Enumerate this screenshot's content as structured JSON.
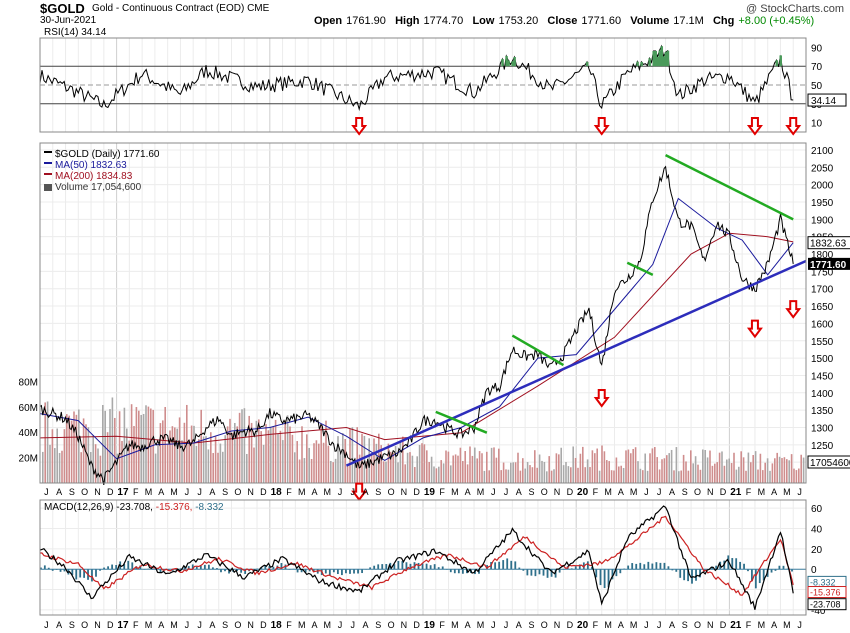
{
  "header": {
    "symbol": "$GOLD",
    "name": "Gold - Continuous Contract (EOD)",
    "exchange": "CME",
    "date": "30-Jun-2021",
    "copyright": "@ StockCharts.com",
    "open_label": "Open",
    "open": "1761.90",
    "high_label": "High",
    "high": "1774.70",
    "low_label": "Low",
    "low": "1753.20",
    "close_label": "Close",
    "close": "1771.60",
    "volume_label": "Volume",
    "volume": "17.1M",
    "chg_label": "Chg",
    "chg": "+8.00 (+0.45%)",
    "chg_color": "#008a00"
  },
  "chart_data": [
    {
      "type": "line",
      "panel": "rsi",
      "title": "RSI(14) 34.14",
      "y_ticks": [
        90,
        70,
        50,
        30,
        10
      ],
      "ylim": [
        0,
        100
      ],
      "reference_lines": [
        70,
        50,
        30
      ],
      "last_value_label": "34.14",
      "series": [
        {
          "name": "RSI(14)",
          "x": [
            "2016-07",
            "2016-10",
            "2016-12",
            "2017-03",
            "2017-06",
            "2017-08",
            "2017-12",
            "2018-04",
            "2018-08",
            "2018-10",
            "2019-02",
            "2019-05",
            "2019-08",
            "2019-11",
            "2020-02",
            "2020-03",
            "2020-05",
            "2020-08",
            "2020-09",
            "2020-11",
            "2021-01",
            "2021-03",
            "2021-05",
            "2021-06"
          ],
          "values": [
            60,
            42,
            28,
            62,
            40,
            66,
            48,
            55,
            27,
            58,
            64,
            42,
            80,
            45,
            68,
            28,
            62,
            88,
            38,
            55,
            60,
            30,
            78,
            34
          ]
        }
      ],
      "markers": [
        {
          "label": "arrow",
          "x": "2018-08"
        },
        {
          "label": "arrow",
          "x": "2020-03"
        },
        {
          "label": "arrow",
          "x": "2021-03"
        },
        {
          "label": "arrow",
          "x": "2021-06"
        }
      ]
    },
    {
      "type": "line",
      "panel": "price",
      "legend": [
        "$GOLD (Daily) 1771.60",
        "MA(50) 1832.63",
        "MA(200) 1834.83",
        "Volume 17,054,600"
      ],
      "legend_placement": "top-left",
      "y_ticks": [
        1200,
        1250,
        1300,
        1350,
        1400,
        1450,
        1500,
        1550,
        1600,
        1650,
        1700,
        1750,
        1800,
        1850,
        1900,
        1950,
        2000,
        2050,
        2100
      ],
      "ylim": [
        1140,
        2120
      ],
      "right_labels": [
        "1832.63",
        "1771.60"
      ],
      "volume_ticks": [
        "80M",
        "60M",
        "40M",
        "20M"
      ],
      "volume_last_label": "17054600",
      "x_month_labels": [
        "J",
        "A",
        "S",
        "O",
        "N",
        "D",
        "17",
        "F",
        "M",
        "A",
        "M",
        "J",
        "J",
        "A",
        "S",
        "O",
        "N",
        "D",
        "18",
        "F",
        "M",
        "A",
        "M",
        "J",
        "J",
        "A",
        "S",
        "O",
        "N",
        "D",
        "19",
        "F",
        "M",
        "A",
        "M",
        "J",
        "J",
        "A",
        "S",
        "O",
        "N",
        "D",
        "20",
        "F",
        "M",
        "A",
        "M",
        "J",
        "J",
        "A",
        "S",
        "O",
        "N",
        "D",
        "21",
        "F",
        "M",
        "A",
        "M",
        "J"
      ],
      "series": [
        {
          "name": "$GOLD (Daily)",
          "color": "#000000",
          "x": [
            "2016-07",
            "2016-08",
            "2016-09",
            "2016-10",
            "2016-11",
            "2016-12",
            "2017-01",
            "2017-02",
            "2017-03",
            "2017-04",
            "2017-05",
            "2017-06",
            "2017-07",
            "2017-08",
            "2017-09",
            "2017-10",
            "2017-11",
            "2017-12",
            "2018-01",
            "2018-02",
            "2018-03",
            "2018-04",
            "2018-05",
            "2018-06",
            "2018-07",
            "2018-08",
            "2018-09",
            "2018-10",
            "2018-11",
            "2018-12",
            "2019-01",
            "2019-02",
            "2019-03",
            "2019-04",
            "2019-05",
            "2019-06",
            "2019-07",
            "2019-08",
            "2019-09",
            "2019-10",
            "2019-11",
            "2019-12",
            "2020-01",
            "2020-02",
            "2020-03",
            "2020-04",
            "2020-05",
            "2020-06",
            "2020-07",
            "2020-08",
            "2020-09",
            "2020-10",
            "2020-11",
            "2020-12",
            "2021-01",
            "2021-02",
            "2021-03",
            "2021-04",
            "2021-05",
            "2021-06"
          ],
          "values": [
            1355,
            1340,
            1325,
            1275,
            1190,
            1150,
            1200,
            1250,
            1245,
            1265,
            1265,
            1245,
            1255,
            1300,
            1325,
            1275,
            1290,
            1290,
            1340,
            1320,
            1325,
            1335,
            1300,
            1250,
            1225,
            1185,
            1200,
            1215,
            1225,
            1260,
            1320,
            1320,
            1295,
            1280,
            1300,
            1405,
            1420,
            1525,
            1505,
            1510,
            1470,
            1510,
            1580,
            1640,
            1475,
            1700,
            1730,
            1780,
            1960,
            2050,
            1895,
            1880,
            1780,
            1890,
            1850,
            1730,
            1700,
            1770,
            1900,
            1771.6
          ]
        },
        {
          "name": "MA(50)",
          "color": "#1a1a9c",
          "x": [
            "2016-07",
            "2016-10",
            "2017-01",
            "2017-04",
            "2017-07",
            "2017-10",
            "2018-01",
            "2018-04",
            "2018-07",
            "2018-10",
            "2019-01",
            "2019-04",
            "2019-07",
            "2019-10",
            "2020-01",
            "2020-04",
            "2020-07",
            "2020-09",
            "2020-12",
            "2021-02",
            "2021-04",
            "2021-06"
          ],
          "values": [
            1340,
            1320,
            1210,
            1250,
            1255,
            1290,
            1300,
            1330,
            1275,
            1205,
            1270,
            1300,
            1360,
            1500,
            1510,
            1640,
            1770,
            1960,
            1875,
            1840,
            1740,
            1832.63
          ]
        },
        {
          "name": "MA(200)",
          "color": "#a01020",
          "x": [
            "2016-07",
            "2017-01",
            "2017-07",
            "2018-01",
            "2018-07",
            "2018-10",
            "2019-04",
            "2019-10",
            "2020-04",
            "2020-10",
            "2021-01",
            "2021-04",
            "2021-06"
          ],
          "values": [
            1270,
            1275,
            1255,
            1280,
            1300,
            1265,
            1285,
            1420,
            1560,
            1800,
            1860,
            1850,
            1834.83
          ]
        },
        {
          "name": "Volume",
          "color": "#c06060",
          "values_m": [
            60,
            62,
            55,
            45,
            30,
            25,
            28,
            25,
            22
          ]
        }
      ],
      "trendlines": [
        {
          "color": "#2d2dbb",
          "from": [
            "2018-07",
            1190
          ],
          "to": [
            "2021-07",
            1780
          ]
        },
        {
          "color": "#22aa22",
          "from": [
            "2020-08",
            2085
          ],
          "to": [
            "2021-06",
            1900
          ]
        },
        {
          "color": "#22aa22",
          "from": [
            "2019-02",
            1345
          ],
          "to": [
            "2019-06",
            1285
          ]
        },
        {
          "color": "#22aa22",
          "from": [
            "2019-08",
            1565
          ],
          "to": [
            "2019-12",
            1480
          ]
        },
        {
          "color": "#22aa22",
          "from": [
            "2020-05",
            1775
          ],
          "to": [
            "2020-07",
            1740
          ]
        }
      ],
      "markers": [
        {
          "label": "arrow",
          "x": "2018-08"
        },
        {
          "label": "arrow",
          "x": "2020-03"
        },
        {
          "label": "arrow",
          "x": "2021-03"
        },
        {
          "label": "arrow",
          "x": "2021-06"
        }
      ]
    },
    {
      "type": "line",
      "panel": "macd",
      "title": "MACD(12,26,9) -23.708, -15.376, -8.332",
      "legend_values": {
        "macd": "-23.708",
        "signal": "-15.376",
        "hist": "-8.332"
      },
      "y_ticks": [
        60,
        40,
        20,
        0,
        -20,
        -40
      ],
      "ylim": [
        -45,
        68
      ],
      "right_labels": [
        "-8.332",
        "-15.376",
        "-23.708"
      ],
      "series": [
        {
          "name": "MACD",
          "color": "#000000",
          "x": [
            "2016-07",
            "2016-09",
            "2016-11",
            "2017-02",
            "2017-05",
            "2017-08",
            "2017-11",
            "2018-02",
            "2018-05",
            "2018-08",
            "2018-11",
            "2019-02",
            "2019-05",
            "2019-08",
            "2019-11",
            "2020-02",
            "2020-03",
            "2020-05",
            "2020-08",
            "2020-10",
            "2021-01",
            "2021-03",
            "2021-05",
            "2021-06"
          ],
          "values": [
            20,
            2,
            -28,
            12,
            -6,
            14,
            -8,
            10,
            -12,
            -22,
            8,
            18,
            -4,
            38,
            -4,
            18,
            -35,
            30,
            62,
            -10,
            8,
            -38,
            38,
            -23.708
          ]
        },
        {
          "name": "Signal",
          "color": "#cc2222",
          "x": [
            "2016-07",
            "2016-10",
            "2016-12",
            "2017-03",
            "2017-06",
            "2017-09",
            "2017-12",
            "2018-03",
            "2018-06",
            "2018-09",
            "2018-12",
            "2019-03",
            "2019-06",
            "2019-09",
            "2019-12",
            "2020-03",
            "2020-05",
            "2020-08",
            "2020-11",
            "2021-02",
            "2021-05",
            "2021-06"
          ],
          "values": [
            15,
            5,
            -20,
            5,
            -2,
            10,
            -4,
            6,
            -8,
            -18,
            2,
            14,
            2,
            32,
            2,
            6,
            22,
            52,
            0,
            -25,
            30,
            -15.376
          ]
        }
      ]
    }
  ]
}
